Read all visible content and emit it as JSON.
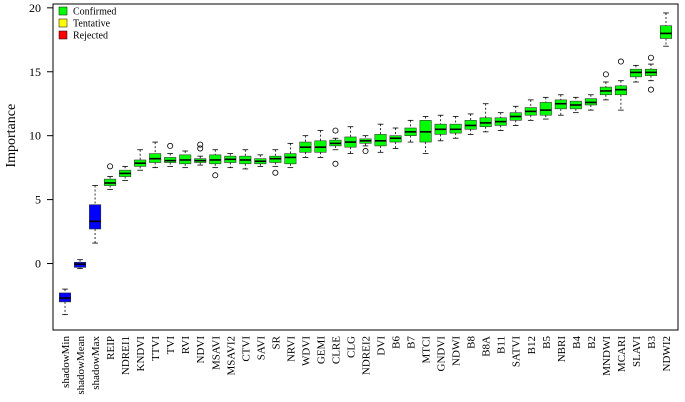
{
  "chart_data": {
    "type": "box",
    "ylabel": "Importance",
    "xlabel": "",
    "ylim": [
      -5.2,
      20.3
    ],
    "yticks": [
      0,
      5,
      10,
      15,
      20
    ],
    "grid": false,
    "legend_position": "top-left",
    "legend": [
      {
        "label": "Confirmed",
        "color": "#00ff00"
      },
      {
        "label": "Tentative",
        "color": "#ffff00"
      },
      {
        "label": "Rejected",
        "color": "#ff0000"
      }
    ],
    "colors": {
      "confirmed": "#00ff00",
      "shadow": "#0000ff"
    },
    "boxes": [
      {
        "name": "shadowMin",
        "group": "shadow",
        "min": -4.0,
        "q1": -3.0,
        "median": -2.7,
        "q3": -2.3,
        "max": -2.0,
        "outliers": []
      },
      {
        "name": "shadowMean",
        "group": "shadow",
        "min": -0.4,
        "q1": -0.3,
        "median": -0.05,
        "q3": 0.1,
        "max": 0.3,
        "outliers": []
      },
      {
        "name": "shadowMax",
        "group": "shadow",
        "min": 1.6,
        "q1": 2.7,
        "median": 3.3,
        "q3": 4.6,
        "max": 6.1,
        "outliers": []
      },
      {
        "name": "REIP",
        "group": "confirmed",
        "min": 5.8,
        "q1": 6.1,
        "median": 6.3,
        "q3": 6.6,
        "max": 6.8,
        "outliers": [
          7.6
        ]
      },
      {
        "name": "NDREI1",
        "group": "confirmed",
        "min": 6.5,
        "q1": 6.8,
        "median": 7.05,
        "q3": 7.3,
        "max": 7.6,
        "outliers": []
      },
      {
        "name": "KNDVI",
        "group": "confirmed",
        "min": 7.3,
        "q1": 7.6,
        "median": 7.85,
        "q3": 8.1,
        "max": 8.9,
        "outliers": []
      },
      {
        "name": "TTVI",
        "group": "confirmed",
        "min": 7.5,
        "q1": 7.9,
        "median": 8.2,
        "q3": 8.6,
        "max": 9.5,
        "outliers": []
      },
      {
        "name": "TVI",
        "group": "confirmed",
        "min": 7.6,
        "q1": 7.9,
        "median": 8.05,
        "q3": 8.3,
        "max": 8.6,
        "outliers": [
          9.2
        ]
      },
      {
        "name": "RVI",
        "group": "confirmed",
        "min": 7.5,
        "q1": 7.8,
        "median": 8.1,
        "q3": 8.5,
        "max": 8.8,
        "outliers": []
      },
      {
        "name": "NDVI",
        "group": "confirmed",
        "min": 7.7,
        "q1": 7.9,
        "median": 8.05,
        "q3": 8.2,
        "max": 8.4,
        "outliers": [
          9.0,
          9.3
        ]
      },
      {
        "name": "MSAVI",
        "group": "confirmed",
        "min": 7.5,
        "q1": 7.8,
        "median": 8.1,
        "q3": 8.5,
        "max": 8.9,
        "outliers": [
          6.9
        ]
      },
      {
        "name": "MSAVI2",
        "group": "confirmed",
        "min": 7.5,
        "q1": 7.9,
        "median": 8.15,
        "q3": 8.4,
        "max": 8.6,
        "outliers": []
      },
      {
        "name": "CTVI",
        "group": "confirmed",
        "min": 7.4,
        "q1": 7.8,
        "median": 8.1,
        "q3": 8.4,
        "max": 8.9,
        "outliers": []
      },
      {
        "name": "SAVI",
        "group": "confirmed",
        "min": 7.6,
        "q1": 7.8,
        "median": 8.0,
        "q3": 8.2,
        "max": 8.5,
        "outliers": []
      },
      {
        "name": "SR",
        "group": "confirmed",
        "min": 7.6,
        "q1": 7.9,
        "median": 8.2,
        "q3": 8.4,
        "max": 8.9,
        "outliers": [
          7.1
        ]
      },
      {
        "name": "NRVI",
        "group": "confirmed",
        "min": 7.5,
        "q1": 7.8,
        "median": 8.3,
        "q3": 8.6,
        "max": 9.4,
        "outliers": []
      },
      {
        "name": "WDVI",
        "group": "confirmed",
        "min": 8.3,
        "q1": 8.7,
        "median": 9.1,
        "q3": 9.5,
        "max": 10.0,
        "outliers": []
      },
      {
        "name": "GEMI",
        "group": "confirmed",
        "min": 8.3,
        "q1": 8.7,
        "median": 9.1,
        "q3": 9.6,
        "max": 10.4,
        "outliers": []
      },
      {
        "name": "CLRE",
        "group": "confirmed",
        "min": 8.9,
        "q1": 9.2,
        "median": 9.4,
        "q3": 9.65,
        "max": 9.8,
        "outliers": [
          10.4,
          7.8
        ]
      },
      {
        "name": "CLG",
        "group": "confirmed",
        "min": 8.6,
        "q1": 9.1,
        "median": 9.5,
        "q3": 9.9,
        "max": 10.7,
        "outliers": []
      },
      {
        "name": "NDREI2",
        "group": "confirmed",
        "min": 9.2,
        "q1": 9.4,
        "median": 9.6,
        "q3": 9.75,
        "max": 10.0,
        "outliers": [
          8.8
        ]
      },
      {
        "name": "DVI",
        "group": "confirmed",
        "min": 8.7,
        "q1": 9.2,
        "median": 9.6,
        "q3": 10.1,
        "max": 10.9,
        "outliers": []
      },
      {
        "name": "B6",
        "group": "confirmed",
        "min": 9.0,
        "q1": 9.5,
        "median": 9.8,
        "q3": 10.0,
        "max": 10.6,
        "outliers": []
      },
      {
        "name": "B7",
        "group": "confirmed",
        "min": 9.5,
        "q1": 10.0,
        "median": 10.3,
        "q3": 10.6,
        "max": 11.2,
        "outliers": []
      },
      {
        "name": "MTCI",
        "group": "confirmed",
        "min": 8.6,
        "q1": 9.5,
        "median": 10.3,
        "q3": 11.2,
        "max": 11.5,
        "outliers": []
      },
      {
        "name": "GNDVI",
        "group": "confirmed",
        "min": 9.6,
        "q1": 10.1,
        "median": 10.5,
        "q3": 10.9,
        "max": 11.6,
        "outliers": []
      },
      {
        "name": "NDWI",
        "group": "confirmed",
        "min": 9.8,
        "q1": 10.2,
        "median": 10.5,
        "q3": 10.9,
        "max": 11.5,
        "outliers": []
      },
      {
        "name": "B8",
        "group": "confirmed",
        "min": 10.1,
        "q1": 10.5,
        "median": 10.8,
        "q3": 11.2,
        "max": 11.7,
        "outliers": []
      },
      {
        "name": "B8A",
        "group": "confirmed",
        "min": 10.3,
        "q1": 10.7,
        "median": 11.0,
        "q3": 11.4,
        "max": 12.5,
        "outliers": []
      },
      {
        "name": "B11",
        "group": "confirmed",
        "min": 10.4,
        "q1": 10.8,
        "median": 11.1,
        "q3": 11.4,
        "max": 11.8,
        "outliers": []
      },
      {
        "name": "SATVI",
        "group": "confirmed",
        "min": 10.8,
        "q1": 11.2,
        "median": 11.5,
        "q3": 11.8,
        "max": 12.3,
        "outliers": []
      },
      {
        "name": "B12",
        "group": "confirmed",
        "min": 11.2,
        "q1": 11.6,
        "median": 11.9,
        "q3": 12.2,
        "max": 12.8,
        "outliers": []
      },
      {
        "name": "B5",
        "group": "confirmed",
        "min": 11.3,
        "q1": 11.6,
        "median": 12.0,
        "q3": 12.6,
        "max": 13.0,
        "outliers": []
      },
      {
        "name": "NBRI",
        "group": "confirmed",
        "min": 11.6,
        "q1": 12.1,
        "median": 12.5,
        "q3": 12.8,
        "max": 13.2,
        "outliers": []
      },
      {
        "name": "B4",
        "group": "confirmed",
        "min": 11.8,
        "q1": 12.1,
        "median": 12.4,
        "q3": 12.7,
        "max": 13.0,
        "outliers": []
      },
      {
        "name": "B2",
        "group": "confirmed",
        "min": 12.0,
        "q1": 12.4,
        "median": 12.6,
        "q3": 12.9,
        "max": 13.2,
        "outliers": []
      },
      {
        "name": "MNDWI",
        "group": "confirmed",
        "min": 12.8,
        "q1": 13.2,
        "median": 13.5,
        "q3": 13.8,
        "max": 14.2,
        "outliers": [
          14.8
        ]
      },
      {
        "name": "MCARI",
        "group": "confirmed",
        "min": 12.0,
        "q1": 13.2,
        "median": 13.6,
        "q3": 13.9,
        "max": 14.3,
        "outliers": [
          15.8
        ]
      },
      {
        "name": "SLAVI",
        "group": "confirmed",
        "min": 14.2,
        "q1": 14.6,
        "median": 14.95,
        "q3": 15.2,
        "max": 15.5,
        "outliers": []
      },
      {
        "name": "B3",
        "group": "confirmed",
        "min": 14.3,
        "q1": 14.7,
        "median": 14.95,
        "q3": 15.2,
        "max": 15.6,
        "outliers": [
          16.1,
          13.6
        ]
      },
      {
        "name": "NDWI2",
        "group": "confirmed",
        "min": 17.0,
        "q1": 17.6,
        "median": 18.0,
        "q3": 18.6,
        "max": 19.6,
        "outliers": []
      }
    ]
  }
}
